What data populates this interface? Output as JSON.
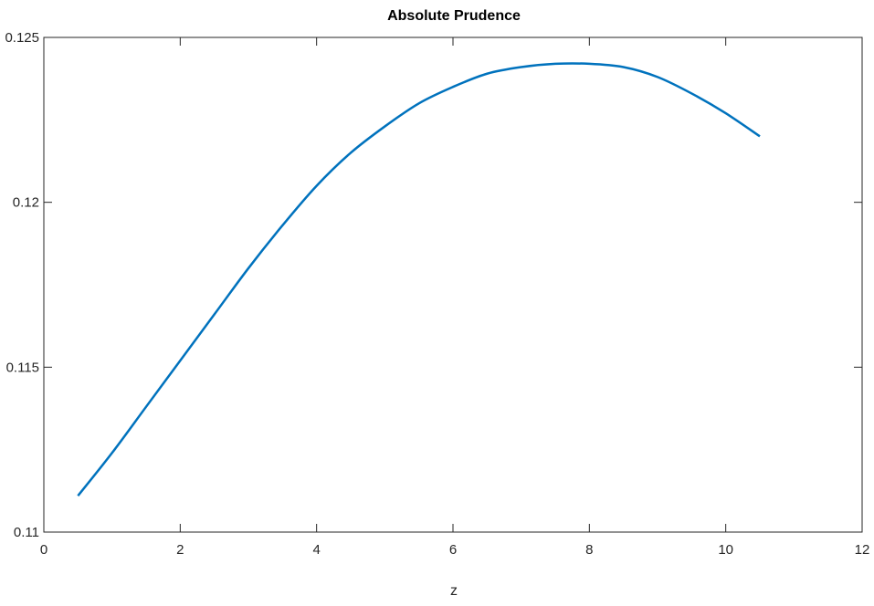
{
  "chart_data": {
    "type": "line",
    "title": "Absolute Prudence",
    "xlabel": "z",
    "ylabel": "",
    "xlim": [
      0,
      12
    ],
    "ylim": [
      0.11,
      0.125
    ],
    "xticks": [
      0,
      2,
      4,
      6,
      8,
      10,
      12
    ],
    "xtick_labels": [
      "0",
      "2",
      "4",
      "6",
      "8",
      "10",
      "12"
    ],
    "yticks": [
      0.11,
      0.115,
      0.12,
      0.125
    ],
    "ytick_labels": [
      "0.11",
      "0.115",
      "0.12",
      "0.125"
    ],
    "grid": false,
    "box": true,
    "series": [
      {
        "color": "#0072BD",
        "x": [
          0.5,
          1.0,
          1.5,
          2.0,
          2.5,
          3.0,
          3.5,
          4.0,
          4.5,
          5.0,
          5.5,
          6.0,
          6.5,
          7.0,
          7.5,
          8.0,
          8.5,
          9.0,
          9.5,
          10.0,
          10.5
        ],
        "y": [
          0.1111,
          0.1124,
          0.1138,
          0.1152,
          0.1166,
          0.118,
          0.1193,
          0.1205,
          0.1215,
          0.1223,
          0.123,
          0.1235,
          0.1239,
          0.1241,
          0.1242,
          0.1242,
          0.1241,
          0.1238,
          0.1233,
          0.1227,
          0.122
        ]
      }
    ]
  }
}
